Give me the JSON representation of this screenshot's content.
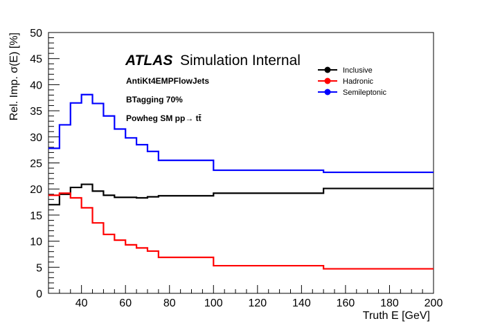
{
  "chart_data": {
    "type": "step",
    "xlabel": "Truth E [GeV]",
    "ylabel": "Rel. Imp. σ(E) [%]",
    "xlim": [
      25,
      200
    ],
    "ylim": [
      0,
      50
    ],
    "x_ticks": [
      40,
      60,
      80,
      100,
      120,
      140,
      160,
      180,
      200
    ],
    "y_ticks": [
      0,
      5,
      10,
      15,
      20,
      25,
      30,
      35,
      40,
      45,
      50
    ],
    "bin_edges": [
      25,
      30,
      35,
      40,
      45,
      50,
      55,
      60,
      65,
      70,
      75,
      100,
      150,
      200
    ],
    "series": [
      {
        "name": "Inclusive",
        "color": "#000000",
        "values": [
          17.0,
          19.0,
          20.3,
          20.9,
          19.6,
          18.8,
          18.4,
          18.4,
          18.3,
          18.5,
          18.7,
          19.2,
          20.1
        ]
      },
      {
        "name": "Hadronic",
        "color": "#ff0000",
        "values": [
          18.8,
          19.2,
          18.3,
          16.4,
          13.5,
          11.3,
          10.2,
          9.3,
          8.7,
          8.1,
          6.9,
          5.3,
          4.7
        ]
      },
      {
        "name": "Semileptonic",
        "color": "#0000ff",
        "values": [
          27.8,
          32.3,
          36.5,
          38.1,
          36.4,
          34.0,
          31.5,
          29.8,
          28.5,
          27.2,
          25.5,
          23.6,
          23.2
        ]
      }
    ],
    "legend_position": "top-right",
    "atlas_label": {
      "bold": "ATLAS",
      "rest": "Simulation Internal"
    },
    "annotations": [
      "AntiKt4EMPFlowJets",
      "BTagging 70%",
      "Powheg SM pp→ tt̄"
    ]
  }
}
